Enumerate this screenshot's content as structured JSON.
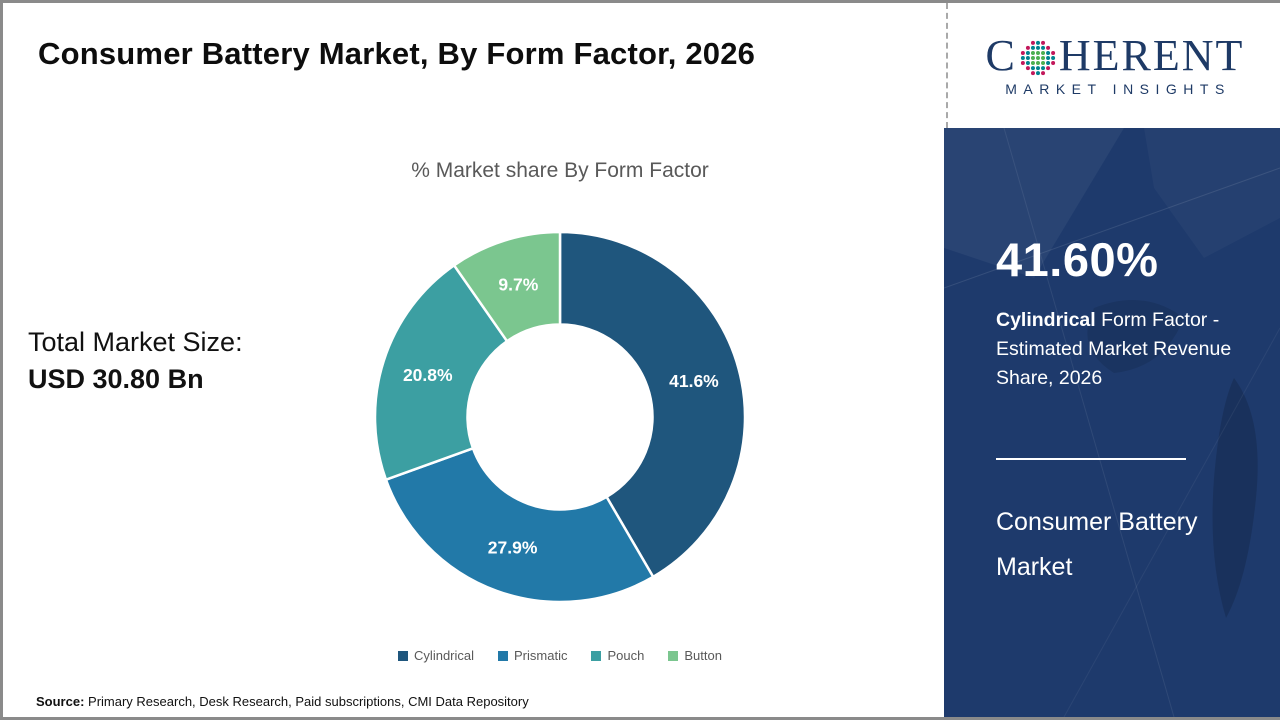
{
  "header": {
    "title": "Consumer Battery Market, By Form Factor, 2026",
    "logo": {
      "c": "C",
      "rest": "HERENT",
      "subtitle": "MARKET INSIGHTS",
      "text_color": "#1e3a66",
      "dot_colors": {
        "outer": [
          "#c2185b",
          "#00838f"
        ],
        "mid": "#00838f",
        "inner": "#4caf50"
      }
    }
  },
  "left_panel": {
    "total_label": "Total Market Size:",
    "total_value": "USD 30.80 Bn"
  },
  "chart_data": {
    "type": "pie",
    "subtype": "donut",
    "title": "% Market share By Form Factor",
    "categories": [
      "Cylindrical",
      "Prismatic",
      "Pouch",
      "Button"
    ],
    "values": [
      41.6,
      27.9,
      20.8,
      9.7
    ],
    "labels": [
      "41.6%",
      "27.9%",
      "20.8%",
      "9.7%"
    ],
    "colors": [
      "#1f567d",
      "#2279a8",
      "#3c9fa2",
      "#7bc68f"
    ],
    "start_angle_deg": 0,
    "direction": "clockwise",
    "inner_radius_ratio": 0.5,
    "legend_position": "bottom",
    "label_color": "#ffffff"
  },
  "sidebar": {
    "headline_value": "41.60%",
    "headline_bold": "Cylindrical",
    "headline_rest": " Form Factor - Estimated Market Revenue Share, 2026",
    "product_name": "Consumer Battery Market",
    "bg_color": "#1e3a6c"
  },
  "footer": {
    "source_label": "Source:",
    "source_text": " Primary Research, Desk Research, Paid subscriptions, CMI Data Repository"
  }
}
